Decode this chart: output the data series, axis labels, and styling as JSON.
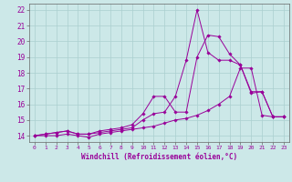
{
  "xlabel": "Windchill (Refroidissement éolien,°C)",
  "background_color": "#cce8e8",
  "grid_color": "#aacfcf",
  "line_color": "#990099",
  "spine_color": "#666666",
  "x_ticks": [
    0,
    1,
    2,
    3,
    4,
    5,
    6,
    7,
    8,
    9,
    10,
    11,
    12,
    13,
    14,
    15,
    16,
    17,
    18,
    19,
    20,
    21,
    22,
    23
  ],
  "y_ticks": [
    14,
    15,
    16,
    17,
    18,
    19,
    20,
    21,
    22
  ],
  "ylim": [
    13.6,
    22.4
  ],
  "xlim": [
    -0.5,
    23.5
  ],
  "series": [
    {
      "x": [
        0,
        1,
        2,
        3,
        4,
        5,
        6,
        7,
        8,
        9,
        10,
        11,
        12,
        13,
        14,
        15,
        16,
        17,
        18,
        19,
        20,
        21,
        22,
        23
      ],
      "y": [
        14.0,
        14.0,
        14.0,
        14.1,
        14.0,
        13.9,
        14.1,
        14.2,
        14.3,
        14.4,
        14.5,
        14.6,
        14.8,
        15.0,
        15.1,
        15.3,
        15.6,
        16.0,
        16.5,
        18.3,
        18.3,
        15.3,
        15.2,
        15.2
      ]
    },
    {
      "x": [
        0,
        1,
        2,
        3,
        4,
        5,
        6,
        7,
        8,
        9,
        10,
        11,
        12,
        13,
        14,
        15,
        16,
        17,
        18,
        19,
        20,
        21,
        22,
        23
      ],
      "y": [
        14.0,
        14.1,
        14.2,
        14.3,
        14.1,
        14.1,
        14.2,
        14.3,
        14.4,
        14.5,
        15.0,
        15.4,
        15.5,
        16.5,
        18.8,
        22.0,
        19.3,
        18.8,
        18.8,
        18.5,
        16.8,
        16.8,
        15.2,
        15.2
      ]
    },
    {
      "x": [
        0,
        1,
        2,
        3,
        4,
        5,
        6,
        7,
        8,
        9,
        10,
        11,
        12,
        13,
        14,
        15,
        16,
        17,
        18,
        19,
        20,
        21,
        22,
        23
      ],
      "y": [
        14.0,
        14.1,
        14.2,
        14.3,
        14.1,
        14.1,
        14.3,
        14.4,
        14.5,
        14.7,
        15.4,
        16.5,
        16.5,
        15.5,
        15.5,
        19.0,
        20.4,
        20.3,
        19.2,
        18.5,
        16.7,
        16.8,
        15.2,
        15.2
      ]
    }
  ]
}
